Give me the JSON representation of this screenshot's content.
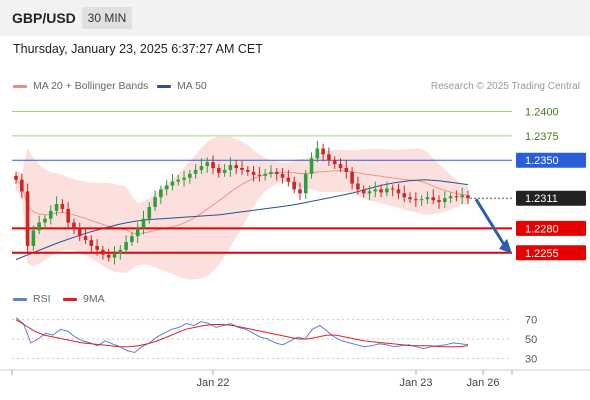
{
  "header": {
    "symbol": "GBP/USD",
    "timeframe": "30 MIN",
    "datetime": "Thursday, January 23, 2025 6:37:27 AM CET"
  },
  "legend": {
    "ma20": {
      "label": "MA 20 + Bollinger Bands",
      "color": "#f08c84"
    },
    "ma50": {
      "label": "MA 50",
      "color": "#2c4f96"
    },
    "rsi": {
      "label": "RSI",
      "color": "#5b80d6"
    },
    "rsi_ma": {
      "label": "9MA",
      "color": "#e02020"
    }
  },
  "credit": "Research © 2025 Trading Central",
  "colors": {
    "up_candle": "#2e9e3e",
    "down_candle": "#d22424",
    "bollinger_fill": "#fadbd7",
    "resistance_green": "#9fd36b",
    "pivot_blue": "#2a5ed8",
    "support_red": "#e60000",
    "current_price_bg": "#222222",
    "forecast_arrow": "#2d5fb0"
  },
  "chart_data": [
    {
      "type": "candlestick",
      "x_tick_labels": [
        "Jan 22",
        "Jan 23",
        "Jan 26"
      ],
      "ylim": [
        1.2225,
        1.242
      ],
      "levels": [
        {
          "value": 1.24,
          "label": "1.2400",
          "kind": "resistance"
        },
        {
          "value": 1.2375,
          "label": "1.2375",
          "kind": "resistance"
        },
        {
          "value": 1.235,
          "label": "1.2350",
          "kind": "pivot"
        },
        {
          "value": 1.2311,
          "label": "1.2311",
          "kind": "current"
        },
        {
          "value": 1.228,
          "label": "1.2280",
          "kind": "support"
        },
        {
          "value": 1.2255,
          "label": "1.2255",
          "kind": "support"
        }
      ],
      "forecast": {
        "direction": "down",
        "from": 1.231,
        "to": 1.2255
      },
      "close": [
        1.233,
        1.2318,
        1.2262,
        1.2278,
        1.2286,
        1.229,
        1.2298,
        1.2305,
        1.23,
        1.2286,
        1.228,
        1.2272,
        1.2268,
        1.2262,
        1.2258,
        1.2253,
        1.225,
        1.2254,
        1.2258,
        1.2266,
        1.2272,
        1.228,
        1.229,
        1.2302,
        1.2312,
        1.232,
        1.2324,
        1.2328,
        1.233,
        1.2332,
        1.2336,
        1.234,
        1.2344,
        1.2348,
        1.2342,
        1.2337,
        1.234,
        1.2345,
        1.2342,
        1.234,
        1.2338,
        1.2335,
        1.2334,
        1.2336,
        1.2338,
        1.2336,
        1.2332,
        1.2328,
        1.232,
        1.2316,
        1.2336,
        1.2352,
        1.2362,
        1.2356,
        1.235,
        1.2346,
        1.2342,
        1.2338,
        1.2326,
        1.232,
        1.2316,
        1.2318,
        1.232,
        1.2317,
        1.2321,
        1.232,
        1.2316,
        1.2312,
        1.231,
        1.2309,
        1.231,
        1.2312,
        1.2309,
        1.2307,
        1.2311,
        1.2313,
        1.2312,
        1.2314,
        1.2311
      ],
      "ma50": [
        1.2248,
        1.2254,
        1.226,
        1.2266,
        1.2271,
        1.2276,
        1.228,
        1.2284,
        1.2287,
        1.2289,
        1.229,
        1.2291,
        1.2292,
        1.2293,
        1.2294,
        1.2296,
        1.2298,
        1.23,
        1.2302,
        1.2304,
        1.2307,
        1.231,
        1.2313,
        1.2316,
        1.232,
        1.2324,
        1.2327,
        1.2329,
        1.233,
        1.2329,
        1.2327,
        1.2325
      ]
    },
    {
      "type": "line",
      "title": "RSI",
      "ylim": [
        20,
        80
      ],
      "y_ticks": [
        70,
        50,
        30
      ],
      "series": [
        {
          "name": "RSI",
          "values": [
            72,
            66,
            46,
            50,
            56,
            54,
            60,
            58,
            52,
            48,
            46,
            43,
            48,
            45,
            42,
            38,
            36,
            42,
            46,
            52,
            56,
            60,
            62,
            66,
            64,
            68,
            66,
            62,
            64,
            66,
            62,
            60,
            56,
            52,
            50,
            46,
            44,
            48,
            52,
            50,
            60,
            64,
            58,
            52,
            48,
            46,
            44,
            42,
            43,
            45,
            44,
            42,
            43,
            44,
            42,
            40,
            42,
            43,
            44,
            46,
            45,
            44
          ]
        },
        {
          "name": "9MA",
          "values": [
            70,
            64,
            58,
            54,
            52,
            50,
            48,
            46,
            45,
            44,
            43,
            42,
            42,
            43,
            45,
            48,
            52,
            56,
            60,
            62,
            64,
            65,
            65,
            64,
            62,
            60,
            58,
            56,
            54,
            52,
            50,
            50,
            52,
            54,
            54,
            52,
            50,
            48,
            47,
            46,
            45,
            44,
            43,
            43,
            43,
            42,
            42,
            42,
            43
          ]
        }
      ]
    }
  ]
}
